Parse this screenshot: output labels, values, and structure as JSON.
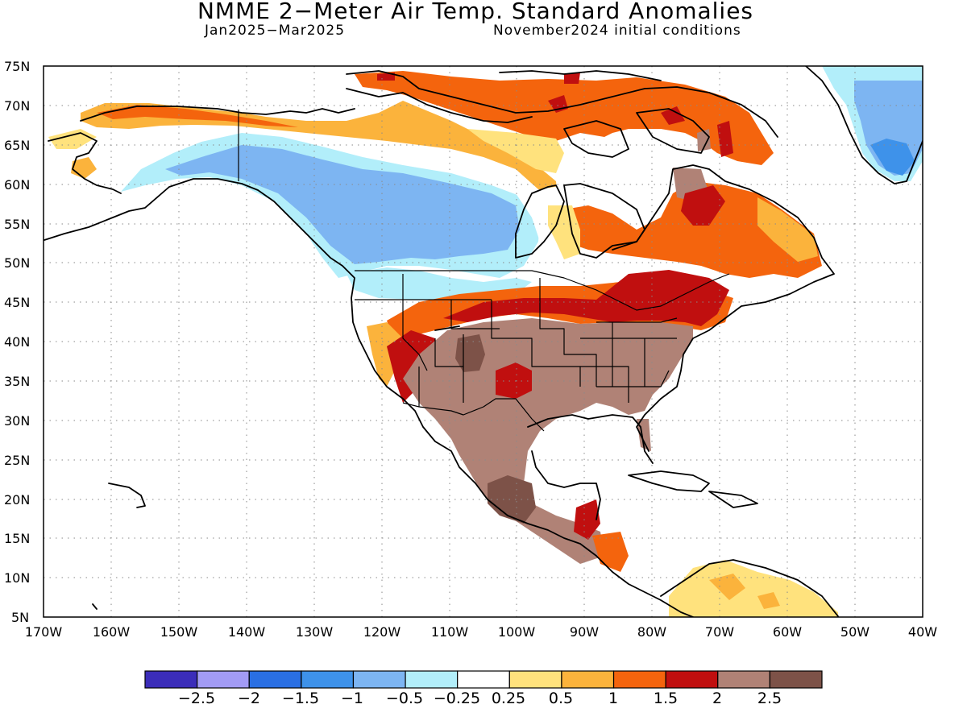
{
  "title": "NMME 2−Meter Air Temp. Standard Anomalies",
  "subtitle_left": "Jan2025−Mar2025",
  "subtitle_right": "November2024 initial conditions",
  "map": {
    "lon_range": [
      -170,
      -40
    ],
    "lat_range": [
      5,
      75
    ],
    "lat_labels": [
      "75N",
      "70N",
      "65N",
      "60N",
      "55N",
      "50N",
      "45N",
      "40N",
      "35N",
      "30N",
      "25N",
      "20N",
      "15N",
      "10N",
      "5N"
    ],
    "lon_labels": [
      "170W",
      "160W",
      "150W",
      "140W",
      "130W",
      "120W",
      "110W",
      "100W",
      "90W",
      "80W",
      "70W",
      "60W",
      "50W",
      "40W"
    ],
    "grid": "dotted"
  },
  "legend": {
    "colors": [
      "#3b2db9",
      "#a29bf5",
      "#2a6fe3",
      "#3e92ea",
      "#7db5f2",
      "#b2eefa",
      "#ffffff",
      "#ffe27d",
      "#fbb33c",
      "#f4640d",
      "#c00f0f",
      "#b08276",
      "#7d5248"
    ],
    "labels": [
      "−2.5",
      "−2",
      "−1.5",
      "−1",
      "−0.5",
      "−0.25",
      "0.25",
      "0.5",
      "1",
      "1.5",
      "2",
      "2.5"
    ]
  },
  "anomaly_regions": [
    {
      "name": "alaska-yukon-north-coast",
      "category": "0.5 to 1"
    },
    {
      "name": "nw-canada-negative",
      "category": "-1 to -0.5"
    },
    {
      "name": "bc-prairies-slight-negative",
      "category": "-0.5 to -0.25"
    },
    {
      "name": "greenland-negative",
      "category": "-1.5 to -1"
    },
    {
      "name": "canadian-arctic-archipelago",
      "category": "1 to 1.5"
    },
    {
      "name": "quebec-labrador",
      "category": "1.5 to 2"
    },
    {
      "name": "great-lakes-new-england",
      "category": "2 to 2.5"
    },
    {
      "name": "us-south-central-mexico",
      "category": "2 to 2.5 (brown)"
    },
    {
      "name": "four-corners",
      "category": "≥ 2.5"
    },
    {
      "name": "southern-mexico",
      "category": "≥ 2.5"
    },
    {
      "name": "california-coast",
      "category": "0.5 to 1"
    },
    {
      "name": "northern-south-america",
      "category": "0.25 to 0.5"
    }
  ]
}
